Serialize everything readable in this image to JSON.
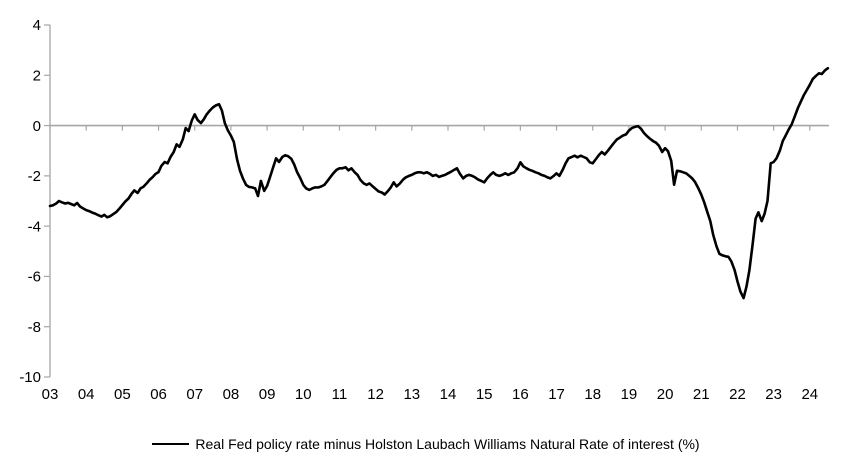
{
  "chart_data": {
    "type": "line",
    "title": "",
    "legend": {
      "label": "Real Fed policy rate minus Holston Laubach Williams Natural Rate of interest (%)",
      "position": "bottom"
    },
    "colors": {
      "line": "#000000",
      "axis": "#a6a6a6",
      "text": "#000000",
      "background": "#ffffff"
    },
    "grid": false,
    "zero_line": true,
    "x_axis": {
      "range": [
        2003.0,
        2024.53
      ],
      "ticks": [
        {
          "label": "03",
          "year": 2003
        },
        {
          "label": "04",
          "year": 2004
        },
        {
          "label": "05",
          "year": 2005
        },
        {
          "label": "06",
          "year": 2006
        },
        {
          "label": "07",
          "year": 2007
        },
        {
          "label": "08",
          "year": 2008
        },
        {
          "label": "09",
          "year": 2009
        },
        {
          "label": "10",
          "year": 2010
        },
        {
          "label": "11",
          "year": 2011
        },
        {
          "label": "12",
          "year": 2012
        },
        {
          "label": "13",
          "year": 2013
        },
        {
          "label": "14",
          "year": 2014
        },
        {
          "label": "15",
          "year": 2015
        },
        {
          "label": "16",
          "year": 2016
        },
        {
          "label": "17",
          "year": 2017
        },
        {
          "label": "18",
          "year": 2018
        },
        {
          "label": "19",
          "year": 2019
        },
        {
          "label": "20",
          "year": 2020
        },
        {
          "label": "21",
          "year": 2021
        },
        {
          "label": "22",
          "year": 2022
        },
        {
          "label": "23",
          "year": 2023
        },
        {
          "label": "24",
          "year": 2024
        }
      ]
    },
    "y_axis": {
      "range": [
        -10,
        4
      ],
      "ticks": [
        {
          "label": "4",
          "value": 4
        },
        {
          "label": "2",
          "value": 2
        },
        {
          "label": "0",
          "value": 0
        },
        {
          "label": "-2",
          "value": -2
        },
        {
          "label": "-4",
          "value": -4
        },
        {
          "label": "-6",
          "value": -6
        },
        {
          "label": "-8",
          "value": -8
        },
        {
          "label": "-10",
          "value": -10
        }
      ]
    },
    "series": [
      {
        "name": "Real Fed policy rate minus Holston Laubach Williams Natural Rate of interest (%)",
        "color": "#000000",
        "points": [
          [
            2003.0,
            -3.2
          ],
          [
            2003.08,
            -3.17
          ],
          [
            2003.17,
            -3.1
          ],
          [
            2003.25,
            -3.0
          ],
          [
            2003.33,
            -3.05
          ],
          [
            2003.42,
            -3.1
          ],
          [
            2003.5,
            -3.07
          ],
          [
            2003.58,
            -3.12
          ],
          [
            2003.67,
            -3.17
          ],
          [
            2003.75,
            -3.08
          ],
          [
            2003.83,
            -3.22
          ],
          [
            2003.92,
            -3.3
          ],
          [
            2004.0,
            -3.36
          ],
          [
            2004.08,
            -3.4
          ],
          [
            2004.17,
            -3.46
          ],
          [
            2004.25,
            -3.5
          ],
          [
            2004.33,
            -3.56
          ],
          [
            2004.42,
            -3.62
          ],
          [
            2004.5,
            -3.55
          ],
          [
            2004.58,
            -3.65
          ],
          [
            2004.67,
            -3.6
          ],
          [
            2004.75,
            -3.52
          ],
          [
            2004.83,
            -3.44
          ],
          [
            2004.92,
            -3.3
          ],
          [
            2005.0,
            -3.16
          ],
          [
            2005.08,
            -3.02
          ],
          [
            2005.17,
            -2.9
          ],
          [
            2005.25,
            -2.72
          ],
          [
            2005.33,
            -2.58
          ],
          [
            2005.42,
            -2.68
          ],
          [
            2005.5,
            -2.5
          ],
          [
            2005.58,
            -2.44
          ],
          [
            2005.67,
            -2.3
          ],
          [
            2005.75,
            -2.16
          ],
          [
            2005.83,
            -2.06
          ],
          [
            2005.92,
            -1.92
          ],
          [
            2006.0,
            -1.85
          ],
          [
            2006.08,
            -1.6
          ],
          [
            2006.17,
            -1.45
          ],
          [
            2006.25,
            -1.5
          ],
          [
            2006.33,
            -1.25
          ],
          [
            2006.42,
            -1.05
          ],
          [
            2006.5,
            -0.75
          ],
          [
            2006.58,
            -0.85
          ],
          [
            2006.67,
            -0.55
          ],
          [
            2006.75,
            -0.1
          ],
          [
            2006.83,
            -0.22
          ],
          [
            2006.92,
            0.2
          ],
          [
            2007.0,
            0.45
          ],
          [
            2007.08,
            0.22
          ],
          [
            2007.17,
            0.1
          ],
          [
            2007.25,
            0.25
          ],
          [
            2007.33,
            0.45
          ],
          [
            2007.42,
            0.6
          ],
          [
            2007.5,
            0.72
          ],
          [
            2007.58,
            0.8
          ],
          [
            2007.67,
            0.85
          ],
          [
            2007.75,
            0.6
          ],
          [
            2007.83,
            0.1
          ],
          [
            2007.92,
            -0.2
          ],
          [
            2008.0,
            -0.4
          ],
          [
            2008.08,
            -0.65
          ],
          [
            2008.17,
            -1.35
          ],
          [
            2008.25,
            -1.8
          ],
          [
            2008.33,
            -2.1
          ],
          [
            2008.42,
            -2.36
          ],
          [
            2008.5,
            -2.44
          ],
          [
            2008.58,
            -2.46
          ],
          [
            2008.67,
            -2.5
          ],
          [
            2008.75,
            -2.8
          ],
          [
            2008.83,
            -2.2
          ],
          [
            2008.92,
            -2.6
          ],
          [
            2009.0,
            -2.4
          ],
          [
            2009.08,
            -2.05
          ],
          [
            2009.17,
            -1.65
          ],
          [
            2009.25,
            -1.3
          ],
          [
            2009.33,
            -1.45
          ],
          [
            2009.42,
            -1.25
          ],
          [
            2009.5,
            -1.18
          ],
          [
            2009.58,
            -1.22
          ],
          [
            2009.67,
            -1.32
          ],
          [
            2009.75,
            -1.55
          ],
          [
            2009.83,
            -1.85
          ],
          [
            2009.92,
            -2.1
          ],
          [
            2010.0,
            -2.36
          ],
          [
            2010.08,
            -2.5
          ],
          [
            2010.17,
            -2.56
          ],
          [
            2010.25,
            -2.5
          ],
          [
            2010.33,
            -2.46
          ],
          [
            2010.42,
            -2.46
          ],
          [
            2010.5,
            -2.42
          ],
          [
            2010.58,
            -2.36
          ],
          [
            2010.67,
            -2.2
          ],
          [
            2010.75,
            -2.05
          ],
          [
            2010.83,
            -1.9
          ],
          [
            2010.92,
            -1.76
          ],
          [
            2011.0,
            -1.7
          ],
          [
            2011.08,
            -1.7
          ],
          [
            2011.17,
            -1.66
          ],
          [
            2011.25,
            -1.78
          ],
          [
            2011.33,
            -1.7
          ],
          [
            2011.42,
            -1.86
          ],
          [
            2011.5,
            -1.96
          ],
          [
            2011.58,
            -2.16
          ],
          [
            2011.67,
            -2.3
          ],
          [
            2011.75,
            -2.36
          ],
          [
            2011.83,
            -2.3
          ],
          [
            2011.92,
            -2.42
          ],
          [
            2012.0,
            -2.52
          ],
          [
            2012.08,
            -2.62
          ],
          [
            2012.17,
            -2.66
          ],
          [
            2012.25,
            -2.74
          ],
          [
            2012.33,
            -2.62
          ],
          [
            2012.42,
            -2.46
          ],
          [
            2012.5,
            -2.26
          ],
          [
            2012.58,
            -2.42
          ],
          [
            2012.67,
            -2.3
          ],
          [
            2012.75,
            -2.16
          ],
          [
            2012.83,
            -2.06
          ],
          [
            2012.92,
            -2.0
          ],
          [
            2013.0,
            -1.96
          ],
          [
            2013.08,
            -1.9
          ],
          [
            2013.17,
            -1.86
          ],
          [
            2013.25,
            -1.86
          ],
          [
            2013.33,
            -1.9
          ],
          [
            2013.42,
            -1.86
          ],
          [
            2013.5,
            -1.92
          ],
          [
            2013.58,
            -2.0
          ],
          [
            2013.67,
            -1.96
          ],
          [
            2013.75,
            -2.04
          ],
          [
            2013.83,
            -2.0
          ],
          [
            2013.92,
            -1.96
          ],
          [
            2014.0,
            -1.9
          ],
          [
            2014.08,
            -1.84
          ],
          [
            2014.17,
            -1.76
          ],
          [
            2014.25,
            -1.7
          ],
          [
            2014.33,
            -1.92
          ],
          [
            2014.42,
            -2.1
          ],
          [
            2014.5,
            -2.0
          ],
          [
            2014.58,
            -1.96
          ],
          [
            2014.67,
            -2.0
          ],
          [
            2014.75,
            -2.06
          ],
          [
            2014.83,
            -2.14
          ],
          [
            2014.92,
            -2.2
          ],
          [
            2015.0,
            -2.26
          ],
          [
            2015.08,
            -2.1
          ],
          [
            2015.17,
            -1.96
          ],
          [
            2015.25,
            -1.86
          ],
          [
            2015.33,
            -1.96
          ],
          [
            2015.42,
            -2.0
          ],
          [
            2015.5,
            -1.96
          ],
          [
            2015.58,
            -1.9
          ],
          [
            2015.67,
            -1.96
          ],
          [
            2015.75,
            -1.9
          ],
          [
            2015.83,
            -1.86
          ],
          [
            2015.92,
            -1.7
          ],
          [
            2016.0,
            -1.46
          ],
          [
            2016.08,
            -1.62
          ],
          [
            2016.17,
            -1.7
          ],
          [
            2016.25,
            -1.76
          ],
          [
            2016.33,
            -1.8
          ],
          [
            2016.42,
            -1.86
          ],
          [
            2016.5,
            -1.9
          ],
          [
            2016.58,
            -1.96
          ],
          [
            2016.67,
            -2.0
          ],
          [
            2016.75,
            -2.06
          ],
          [
            2016.83,
            -2.1
          ],
          [
            2016.92,
            -2.0
          ],
          [
            2017.0,
            -1.9
          ],
          [
            2017.08,
            -2.0
          ],
          [
            2017.17,
            -1.76
          ],
          [
            2017.25,
            -1.5
          ],
          [
            2017.33,
            -1.3
          ],
          [
            2017.42,
            -1.25
          ],
          [
            2017.5,
            -1.2
          ],
          [
            2017.58,
            -1.26
          ],
          [
            2017.67,
            -1.2
          ],
          [
            2017.75,
            -1.25
          ],
          [
            2017.83,
            -1.3
          ],
          [
            2017.92,
            -1.46
          ],
          [
            2018.0,
            -1.5
          ],
          [
            2018.08,
            -1.35
          ],
          [
            2018.17,
            -1.17
          ],
          [
            2018.25,
            -1.05
          ],
          [
            2018.33,
            -1.15
          ],
          [
            2018.42,
            -1.0
          ],
          [
            2018.5,
            -0.85
          ],
          [
            2018.58,
            -0.7
          ],
          [
            2018.67,
            -0.55
          ],
          [
            2018.75,
            -0.48
          ],
          [
            2018.83,
            -0.4
          ],
          [
            2018.92,
            -0.35
          ],
          [
            2019.0,
            -0.2
          ],
          [
            2019.08,
            -0.1
          ],
          [
            2019.17,
            -0.05
          ],
          [
            2019.25,
            -0.02
          ],
          [
            2019.33,
            -0.12
          ],
          [
            2019.42,
            -0.3
          ],
          [
            2019.5,
            -0.42
          ],
          [
            2019.58,
            -0.52
          ],
          [
            2019.67,
            -0.62
          ],
          [
            2019.75,
            -0.68
          ],
          [
            2019.83,
            -0.8
          ],
          [
            2019.92,
            -1.05
          ],
          [
            2020.0,
            -0.9
          ],
          [
            2020.08,
            -1.02
          ],
          [
            2020.17,
            -1.4
          ],
          [
            2020.25,
            -2.35
          ],
          [
            2020.33,
            -1.8
          ],
          [
            2020.42,
            -1.82
          ],
          [
            2020.5,
            -1.86
          ],
          [
            2020.58,
            -1.9
          ],
          [
            2020.67,
            -2.0
          ],
          [
            2020.75,
            -2.1
          ],
          [
            2020.83,
            -2.25
          ],
          [
            2020.92,
            -2.5
          ],
          [
            2021.0,
            -2.75
          ],
          [
            2021.08,
            -3.05
          ],
          [
            2021.17,
            -3.45
          ],
          [
            2021.25,
            -3.8
          ],
          [
            2021.33,
            -4.35
          ],
          [
            2021.42,
            -4.8
          ],
          [
            2021.5,
            -5.1
          ],
          [
            2021.58,
            -5.16
          ],
          [
            2021.67,
            -5.2
          ],
          [
            2021.75,
            -5.22
          ],
          [
            2021.83,
            -5.4
          ],
          [
            2021.92,
            -5.75
          ],
          [
            2022.0,
            -6.2
          ],
          [
            2022.08,
            -6.6
          ],
          [
            2022.17,
            -6.86
          ],
          [
            2022.25,
            -6.4
          ],
          [
            2022.33,
            -5.75
          ],
          [
            2022.42,
            -4.7
          ],
          [
            2022.5,
            -3.7
          ],
          [
            2022.58,
            -3.45
          ],
          [
            2022.67,
            -3.8
          ],
          [
            2022.75,
            -3.5
          ],
          [
            2022.83,
            -3.0
          ],
          [
            2022.92,
            -1.5
          ],
          [
            2023.0,
            -1.45
          ],
          [
            2023.08,
            -1.3
          ],
          [
            2023.17,
            -1.0
          ],
          [
            2023.25,
            -0.62
          ],
          [
            2023.33,
            -0.4
          ],
          [
            2023.42,
            -0.15
          ],
          [
            2023.5,
            0.05
          ],
          [
            2023.58,
            0.35
          ],
          [
            2023.67,
            0.7
          ],
          [
            2023.75,
            0.95
          ],
          [
            2023.83,
            1.2
          ],
          [
            2023.92,
            1.42
          ],
          [
            2024.0,
            1.62
          ],
          [
            2024.08,
            1.85
          ],
          [
            2024.17,
            1.98
          ],
          [
            2024.25,
            2.08
          ],
          [
            2024.33,
            2.05
          ],
          [
            2024.42,
            2.2
          ],
          [
            2024.5,
            2.28
          ]
        ]
      }
    ]
  }
}
